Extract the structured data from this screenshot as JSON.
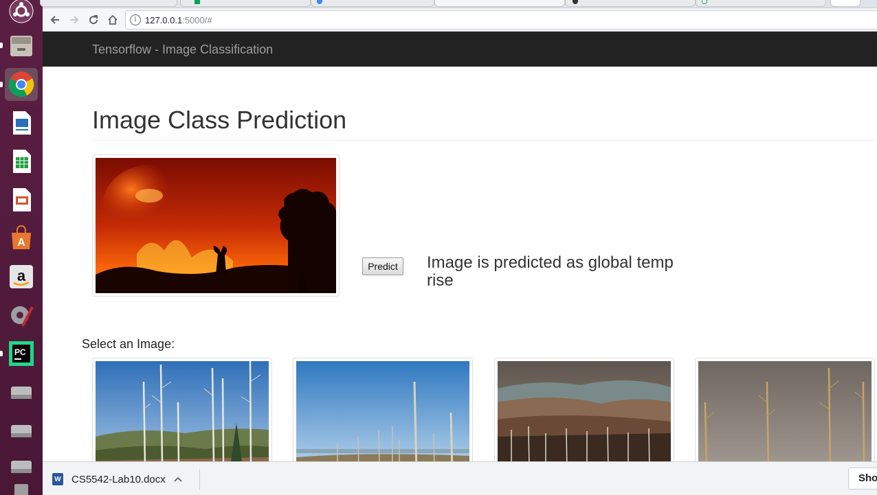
{
  "browser": {
    "url_host": "127.0.0.1",
    "url_rest": ":5000/#"
  },
  "launcher": {
    "apps": [
      "ubuntu-dash",
      "files",
      "chrome",
      "writer",
      "calc",
      "impress",
      "software-center",
      "amazon",
      "system-settings",
      "pycharm",
      "drive",
      "drive",
      "drive",
      "trash"
    ]
  },
  "navbar": {
    "brand": "Tensorflow - Image Classification"
  },
  "main": {
    "title": "Image Class Prediction",
    "predict_label": "Predict",
    "result_text": "Image is predicted as global temp rise",
    "select_label": "Select an Image:"
  },
  "downloads": {
    "file_name": "CS5542-Lab10.docx",
    "file_icon_letter": "W",
    "show_all_label": "Sho"
  },
  "colors": {
    "launcher_bg": "#5b1f43",
    "navbar_bg": "#222222",
    "brand_text": "#9d9d9d"
  }
}
